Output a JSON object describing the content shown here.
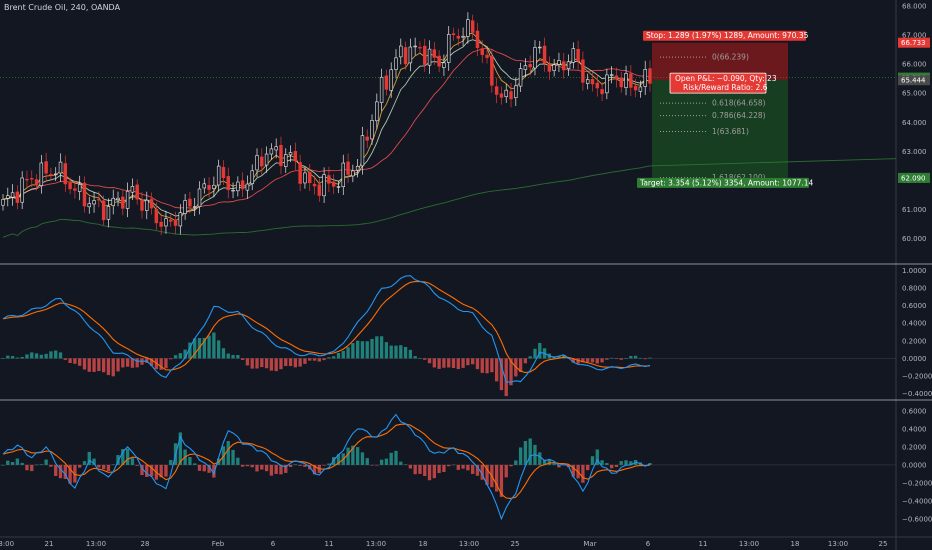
{
  "symbol_title": "Brent Crude Oil, 240, OANDA",
  "colors": {
    "background": "#131722",
    "up": "#e8e8e8",
    "down": "#e53935",
    "ema_fast": "#f0b33b",
    "ema_mid": "#c8e6c9",
    "sma_slow": "#ff5252",
    "sma_long": "#2e7d32",
    "macd": "#2196f3",
    "signal": "#ff6d00",
    "hist_pos": "#26a69a",
    "hist_neg": "#ef5350",
    "stop_zone": "#b71c1c",
    "target_zone": "#1b5e20"
  },
  "chart_data": [
    {
      "type": "candlestick",
      "title": "Brent Crude Oil, 240, OANDA",
      "ylim": [
        59.2,
        68.2
      ],
      "price_ticks": [
        "60.000",
        "61.000",
        "62.000",
        "63.000",
        "64.000",
        "65.000",
        "66.000",
        "67.000",
        "68.000"
      ],
      "x_ticks": [
        "13:00",
        "21",
        "13:00",
        "28",
        "Feb",
        "6",
        "11",
        "13:00",
        "18",
        "13:00",
        "25",
        "Mar",
        "6",
        "11",
        "13:00",
        "18",
        "13:00",
        "25"
      ],
      "price_badges": [
        {
          "text": "66.733",
          "value": 66.733,
          "color": "#e53935"
        },
        {
          "text": "65.534",
          "value": 65.534,
          "color": "#2e7d32"
        },
        {
          "text": "65.444",
          "value": 65.444,
          "color": "#4a4a4a"
        },
        {
          "text": "62.090",
          "value": 62.09,
          "color": "#2e7d32"
        }
      ],
      "position": {
        "entry": 65.444,
        "stop": 66.733,
        "target": 62.09,
        "stop_label": "Stop: 1.289 (1.97%) 1289, Amount: 970.35",
        "target_label": "Target: 3.354 (5.12%) 3354, Amount: 1077.14",
        "pnl_label": "Open P&L: −0.090, Qty: 23",
        "rr_label": "Risk/Reward Ratio: 2.6"
      },
      "fib_levels": [
        {
          "label": "0(66.239)",
          "value": 66.239
        },
        {
          "label": "0.618(64.658)",
          "value": 64.658
        },
        {
          "label": "0.786(64.228)",
          "value": 64.228
        },
        {
          "label": "1(63.681)",
          "value": 63.681
        },
        {
          "label": "1.618(62.100)",
          "value": 62.1
        }
      ],
      "keypoints": [
        [
          0,
          61.2
        ],
        [
          6,
          62.1
        ],
        [
          11,
          62.4
        ],
        [
          16,
          61.5
        ],
        [
          21,
          61.0
        ],
        [
          27,
          61.6
        ],
        [
          34,
          60.4
        ],
        [
          39,
          61.2
        ],
        [
          45,
          62.2
        ],
        [
          49,
          61.6
        ],
        [
          55,
          63.0
        ],
        [
          60,
          62.8
        ],
        [
          64,
          61.8
        ],
        [
          69,
          61.9
        ],
        [
          74,
          62.6
        ],
        [
          79,
          65.2
        ],
        [
          83,
          66.4
        ],
        [
          87,
          66.5
        ],
        [
          91,
          66.0
        ],
        [
          94,
          67.0
        ],
        [
          98,
          67.2
        ],
        [
          100,
          66.3
        ],
        [
          104,
          64.7
        ],
        [
          107,
          65.3
        ],
        [
          111,
          66.5
        ],
        [
          115,
          65.8
        ],
        [
          119,
          66.3
        ],
        [
          123,
          65.1
        ],
        [
          128,
          65.6
        ],
        [
          131,
          65.2
        ],
        [
          135,
          65.5
        ]
      ],
      "ohlc_notes": "Approximate 4H candles, 136 bars"
    },
    {
      "type": "macd",
      "ylim": [
        -0.45,
        1.05
      ],
      "ticks": [
        "1.0000",
        "0.8000",
        "0.6000",
        "0.4000",
        "0.2000",
        "0.0000",
        "−0.2000",
        "−0.4000"
      ],
      "keypoints": [
        [
          0,
          0.45
        ],
        [
          5,
          0.52
        ],
        [
          12,
          0.68
        ],
        [
          18,
          0.38
        ],
        [
          23,
          0.08
        ],
        [
          30,
          -0.05
        ],
        [
          34,
          -0.22
        ],
        [
          38,
          0.02
        ],
        [
          44,
          0.58
        ],
        [
          49,
          0.52
        ],
        [
          53,
          0.32
        ],
        [
          58,
          0.12
        ],
        [
          63,
          0.03
        ],
        [
          69,
          0.06
        ],
        [
          73,
          0.32
        ],
        [
          79,
          0.78
        ],
        [
          85,
          0.95
        ],
        [
          89,
          0.8
        ],
        [
          93,
          0.62
        ],
        [
          98,
          0.5
        ],
        [
          102,
          0.25
        ],
        [
          105,
          -0.25
        ],
        [
          108,
          -0.28
        ],
        [
          112,
          0.05
        ],
        [
          117,
          0.02
        ],
        [
          122,
          -0.1
        ],
        [
          126,
          -0.12
        ],
        [
          130,
          -0.09
        ],
        [
          135,
          -0.07
        ]
      ]
    },
    {
      "type": "macd",
      "ylim": [
        -0.78,
        0.7
      ],
      "ticks": [
        "0.6000",
        "0.4000",
        "0.2000",
        "0.0000",
        "−0.2000",
        "−0.4000",
        "−0.6000"
      ],
      "keypoints": [
        [
          0,
          0.12
        ],
        [
          3,
          0.22
        ],
        [
          6,
          0.08
        ],
        [
          9,
          0.2
        ],
        [
          12,
          -0.05
        ],
        [
          15,
          -0.26
        ],
        [
          18,
          0.05
        ],
        [
          22,
          -0.15
        ],
        [
          26,
          0.22
        ],
        [
          30,
          -0.1
        ],
        [
          34,
          -0.28
        ],
        [
          37,
          0.3
        ],
        [
          40,
          0.12
        ],
        [
          44,
          -0.08
        ],
        [
          47,
          0.4
        ],
        [
          50,
          0.25
        ],
        [
          54,
          0.15
        ],
        [
          58,
          -0.02
        ],
        [
          62,
          0.05
        ],
        [
          66,
          -0.12
        ],
        [
          70,
          0.1
        ],
        [
          74,
          0.42
        ],
        [
          78,
          0.3
        ],
        [
          82,
          0.55
        ],
        [
          86,
          0.35
        ],
        [
          90,
          0.12
        ],
        [
          94,
          0.18
        ],
        [
          98,
          0.05
        ],
        [
          101,
          -0.2
        ],
        [
          104,
          -0.58
        ],
        [
          107,
          -0.3
        ],
        [
          110,
          0.12
        ],
        [
          114,
          0.05
        ],
        [
          118,
          -0.02
        ],
        [
          121,
          -0.3
        ],
        [
          124,
          0.05
        ],
        [
          127,
          -0.1
        ],
        [
          131,
          0.02
        ],
        [
          135,
          0.0
        ]
      ]
    }
  ]
}
